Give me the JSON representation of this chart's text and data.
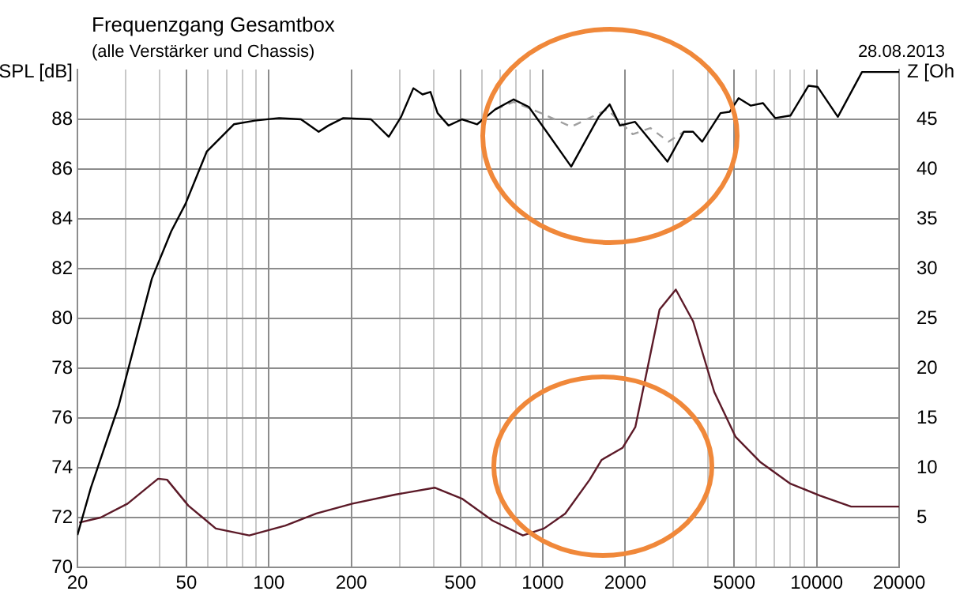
{
  "chart_data": {
    "type": "line",
    "title": "Frequenzgang Gesamtbox",
    "subtitle": "(alle Verstärker und Chassis)",
    "ylabel": "SPL [dB]",
    "y2label": "Z [Oh",
    "annotations": [
      "28.08.2013"
    ],
    "log": "x",
    "grid": true,
    "legend": false,
    "marker": "none",
    "xlim": [
      20,
      20000
    ],
    "xticks": [
      20,
      {
        "value": 30,
        "label": null
      },
      {
        "value": 40,
        "label": null
      },
      50,
      {
        "value": 60,
        "label": null
      },
      {
        "value": 70,
        "label": null
      },
      {
        "value": 80,
        "label": null
      },
      {
        "value": 90,
        "label": null
      },
      100,
      200,
      {
        "value": 300,
        "label": null
      },
      {
        "value": 400,
        "label": null
      },
      500,
      {
        "value": 600,
        "label": null
      },
      {
        "value": 700,
        "label": null
      },
      {
        "value": 800,
        "label": null
      },
      {
        "value": 900,
        "label": null
      },
      1000,
      2000,
      {
        "value": 3000,
        "label": null
      },
      {
        "value": 4000,
        "label": null
      },
      5000,
      {
        "value": 6000,
        "label": null
      },
      {
        "value": 7000,
        "label": null
      },
      {
        "value": 8000,
        "label": null
      },
      {
        "value": 9000,
        "label": null
      },
      10000,
      20000
    ],
    "ylim": [
      70,
      90
    ],
    "yticks": [
      70,
      72,
      74,
      76,
      78,
      80,
      82,
      84,
      86,
      88
    ],
    "y2lim": [
      0,
      50
    ],
    "y2ticks": [
      5,
      10,
      15,
      20,
      25,
      30,
      35,
      40,
      45
    ],
    "series": [
      {
        "color": "#000000",
        "line_style": "solid",
        "x": [
          20,
          22.4,
          28.3,
          37.4,
          44,
          49.6,
          59.3,
          74.5,
          89,
          109,
          131,
          152,
          165,
          187,
          236,
          274,
          304,
          337,
          364,
          389,
          413,
          453,
          507,
          576,
          671,
          783,
          889,
          1010,
          1270,
          1600,
          1755,
          1914,
          2173,
          2470,
          2852,
          3273,
          3538,
          3820,
          4457,
          4810,
          5190,
          5750,
          6370,
          7060,
          8020,
          9340,
          10090,
          11950,
          14640,
          20000
        ],
        "values": [
          71.3,
          73.2,
          76.5,
          81.6,
          83.5,
          84.6,
          86.7,
          87.8,
          87.95,
          88.05,
          88.0,
          87.5,
          87.75,
          88.05,
          88.0,
          87.3,
          88.1,
          89.25,
          89.0,
          89.1,
          88.25,
          87.75,
          88.0,
          87.8,
          88.4,
          88.8,
          88.5,
          87.65,
          86.1,
          88.1,
          88.6,
          87.75,
          87.9,
          87.15,
          86.3,
          87.5,
          87.5,
          87.1,
          88.25,
          88.3,
          88.85,
          88.55,
          88.65,
          88.05,
          88.15,
          89.35,
          89.3,
          88.1,
          89.9,
          89.9
        ]
      },
      {
        "color": "#a0a0a0",
        "line_style": "dashed",
        "x": [
          671,
          783,
          985,
          1270,
          1720,
          2130,
          2470,
          2880,
          3273
        ],
        "values": [
          88.4,
          88.7,
          88.25,
          87.7,
          88.4,
          87.4,
          87.65,
          87.1,
          87.5
        ]
      },
      {
        "color": "#5c1a28",
        "line_style": "solid",
        "axis": "y2",
        "x": [
          20.3,
          24.3,
          30.5,
          39.4,
          42.5,
          50.8,
          64,
          84.8,
          115,
          149,
          202,
          289,
          403,
          507,
          655,
          846,
          1010,
          1208,
          1483,
          1641,
          1955,
          2178,
          2350,
          2670,
          3060,
          3540,
          4230,
          5060,
          6210,
          8020,
          10300,
          13360,
          20000
        ],
        "values": [
          4.5,
          5.0,
          6.4,
          8.9,
          8.8,
          6.2,
          3.9,
          3.2,
          4.2,
          5.4,
          6.4,
          7.3,
          8.0,
          6.9,
          4.7,
          3.2,
          3.9,
          5.4,
          8.8,
          10.8,
          12.0,
          14.1,
          18.5,
          25.9,
          27.9,
          24.7,
          17.6,
          13.1,
          10.6,
          8.4,
          7.2,
          6.1,
          6.1
        ]
      }
    ]
  }
}
